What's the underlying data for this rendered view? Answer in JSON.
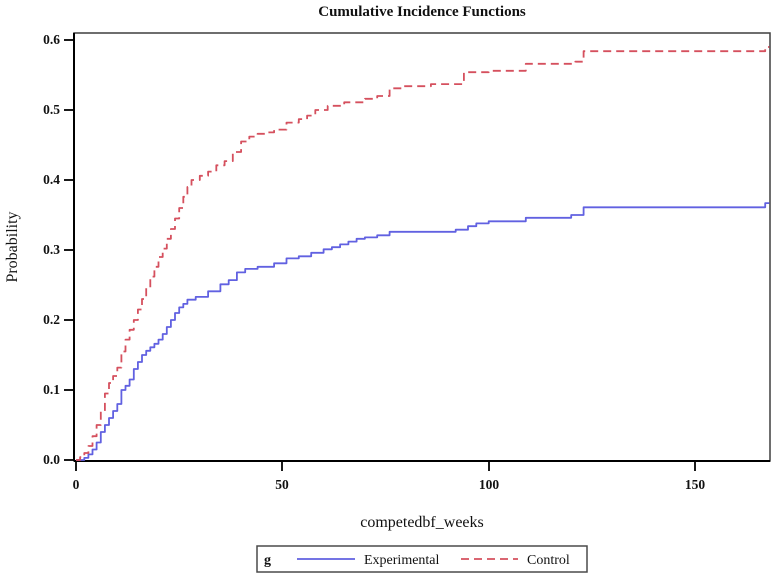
{
  "figure": {
    "background": "#ffffff",
    "frame_color": "#3f3f3f",
    "axis_color": "#000000",
    "text_color": "#111111"
  },
  "chart_data": {
    "type": "line",
    "subtype": "step",
    "title": "Cumulative Incidence Functions",
    "xlabel": "competedbf_weeks",
    "ylabel": "Probability",
    "xlim": [
      0,
      168
    ],
    "ylim": [
      0,
      0.61
    ],
    "grid": false,
    "x_ticks": [
      0,
      50,
      100,
      150
    ],
    "x_tick_labels": [
      "0",
      "50",
      "100",
      "150"
    ],
    "y_ticks": [
      0.0,
      0.1,
      0.2,
      0.3,
      0.4,
      0.5,
      0.6
    ],
    "y_tick_labels": [
      "0.0",
      "0.1",
      "0.2",
      "0.3",
      "0.4",
      "0.5",
      "0.6"
    ],
    "legend": {
      "position": "bottom",
      "group_label": "g"
    },
    "series": [
      {
        "name": "Experimental",
        "color": "#6161e1",
        "style": "solid",
        "points": [
          [
            0,
            0
          ],
          [
            2,
            0.003
          ],
          [
            3,
            0.008
          ],
          [
            4,
            0.015
          ],
          [
            5,
            0.025
          ],
          [
            6,
            0.04
          ],
          [
            7,
            0.05
          ],
          [
            8,
            0.06
          ],
          [
            9,
            0.07
          ],
          [
            10,
            0.08
          ],
          [
            11,
            0.1
          ],
          [
            12,
            0.106
          ],
          [
            13,
            0.115
          ],
          [
            14,
            0.13
          ],
          [
            15,
            0.14
          ],
          [
            16,
            0.15
          ],
          [
            17,
            0.156
          ],
          [
            18,
            0.161
          ],
          [
            19,
            0.166
          ],
          [
            20,
            0.172
          ],
          [
            21,
            0.18
          ],
          [
            22,
            0.19
          ],
          [
            23,
            0.2
          ],
          [
            24,
            0.21
          ],
          [
            25,
            0.218
          ],
          [
            26,
            0.223
          ],
          [
            27,
            0.229
          ],
          [
            29,
            0.233
          ],
          [
            32,
            0.241
          ],
          [
            35,
            0.251
          ],
          [
            37,
            0.257
          ],
          [
            39,
            0.268
          ],
          [
            41,
            0.273
          ],
          [
            44,
            0.276
          ],
          [
            48,
            0.281
          ],
          [
            51,
            0.288
          ],
          [
            54,
            0.291
          ],
          [
            57,
            0.296
          ],
          [
            60,
            0.301
          ],
          [
            62,
            0.304
          ],
          [
            64,
            0.308
          ],
          [
            66,
            0.312
          ],
          [
            68,
            0.316
          ],
          [
            70,
            0.318
          ],
          [
            73,
            0.321
          ],
          [
            76,
            0.326
          ],
          [
            92,
            0.329
          ],
          [
            95,
            0.334
          ],
          [
            97,
            0.338
          ],
          [
            100,
            0.341
          ],
          [
            109,
            0.346
          ],
          [
            120,
            0.35
          ],
          [
            123,
            0.361
          ],
          [
            167,
            0.367
          ]
        ]
      },
      {
        "name": "Control",
        "color": "#d5505e",
        "style": "dashed",
        "points": [
          [
            0,
            0
          ],
          [
            1,
            0.004
          ],
          [
            2,
            0.01
          ],
          [
            3,
            0.02
          ],
          [
            4,
            0.034
          ],
          [
            5,
            0.05
          ],
          [
            6,
            0.07
          ],
          [
            7,
            0.095
          ],
          [
            8,
            0.11
          ],
          [
            9,
            0.12
          ],
          [
            10,
            0.132
          ],
          [
            11,
            0.155
          ],
          [
            12,
            0.172
          ],
          [
            13,
            0.186
          ],
          [
            14,
            0.2
          ],
          [
            15,
            0.215
          ],
          [
            16,
            0.23
          ],
          [
            17,
            0.246
          ],
          [
            18,
            0.262
          ],
          [
            19,
            0.276
          ],
          [
            20,
            0.29
          ],
          [
            21,
            0.302
          ],
          [
            22,
            0.316
          ],
          [
            23,
            0.33
          ],
          [
            24,
            0.345
          ],
          [
            25,
            0.36
          ],
          [
            26,
            0.376
          ],
          [
            27,
            0.39
          ],
          [
            28,
            0.4
          ],
          [
            30,
            0.406
          ],
          [
            32,
            0.412
          ],
          [
            34,
            0.421
          ],
          [
            36,
            0.427
          ],
          [
            38,
            0.44
          ],
          [
            40,
            0.455
          ],
          [
            42,
            0.462
          ],
          [
            44,
            0.466
          ],
          [
            46,
            0.468
          ],
          [
            48,
            0.472
          ],
          [
            51,
            0.482
          ],
          [
            54,
            0.487
          ],
          [
            56,
            0.492
          ],
          [
            58,
            0.5
          ],
          [
            61,
            0.506
          ],
          [
            65,
            0.511
          ],
          [
            70,
            0.516
          ],
          [
            73,
            0.52
          ],
          [
            76,
            0.531
          ],
          [
            79,
            0.534
          ],
          [
            86,
            0.537
          ],
          [
            94,
            0.554
          ],
          [
            100,
            0.556
          ],
          [
            109,
            0.566
          ],
          [
            121,
            0.569
          ],
          [
            123,
            0.584
          ],
          [
            167,
            0.59
          ]
        ]
      }
    ]
  }
}
